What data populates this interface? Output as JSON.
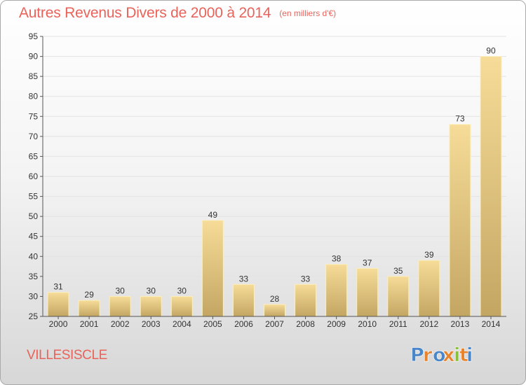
{
  "title": "Autres Revenus Divers de 2000 à 2014",
  "title_unit": "(en milliers d'€)",
  "place": "VILLESISCLE",
  "logo": {
    "text": "Proxiti",
    "letter_colors": [
      "#4a86c8",
      "#e6832d",
      "#4a86c8",
      "#e6832d",
      "#8bbf3a",
      "#e6832d",
      "#4a86c8"
    ]
  },
  "colors": {
    "title": "#e8635a",
    "bar_light": "#f6dc98",
    "bar_dark": "#c4a663",
    "grid": "#e3e3e3",
    "axis": "#555555",
    "text": "#333333"
  },
  "chart_data": {
    "type": "bar",
    "title": "Autres Revenus Divers de 2000 à 2014",
    "subtitle": "(en milliers d'€)",
    "xlabel": "",
    "ylabel": "",
    "categories": [
      "2000",
      "2001",
      "2002",
      "2003",
      "2004",
      "2005",
      "2006",
      "2007",
      "2008",
      "2009",
      "2010",
      "2011",
      "2012",
      "2013",
      "2014"
    ],
    "values": [
      31,
      29,
      30,
      30,
      30,
      49,
      33,
      28,
      33,
      38,
      37,
      35,
      39,
      73,
      90
    ],
    "data_labels": [
      "31",
      "29",
      "30",
      "30",
      "30",
      "49",
      "33",
      "28",
      "33",
      "38",
      "37",
      "35",
      "39",
      "73",
      "90"
    ],
    "ylim": [
      25,
      95
    ],
    "yticks": [
      "25",
      "30",
      "35",
      "40",
      "45",
      "50",
      "55",
      "60",
      "65",
      "70",
      "75",
      "80",
      "85",
      "90",
      "95"
    ],
    "grid": true,
    "legend": "none"
  }
}
